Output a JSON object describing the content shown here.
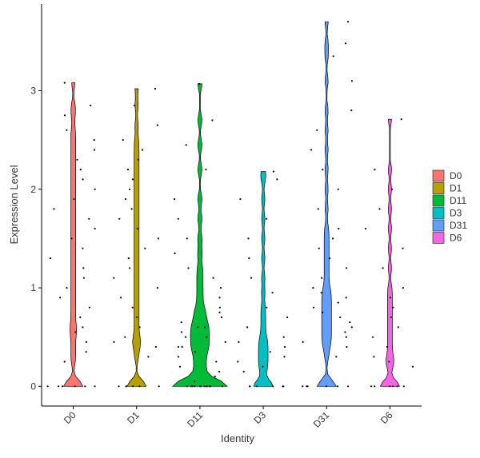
{
  "chart_data": {
    "type": "violin",
    "x_label": "Identity",
    "y_label": "Expression Level",
    "categories": [
      "D0",
      "D1",
      "D11",
      "D3",
      "D31",
      "D6"
    ],
    "ylim": [
      -0.2,
      3.88
    ],
    "yticks": [
      0,
      1,
      2,
      3
    ],
    "series": [
      {
        "name": "D0",
        "color": "#F8766D",
        "values": [
          0,
          0,
          0,
          0,
          0,
          0,
          0.25,
          0.35,
          0.45,
          0.55,
          0.6,
          0.7,
          0.8,
          0.9,
          1.0,
          1.1,
          1.2,
          1.3,
          1.4,
          1.5,
          1.6,
          1.7,
          1.8,
          1.9,
          2.0,
          2.1,
          2.2,
          2.3,
          2.4,
          2.5,
          2.6,
          2.75,
          2.85,
          3.08
        ]
      },
      {
        "name": "D1",
        "color": "#B79F00",
        "values": [
          0,
          0,
          0,
          0,
          0,
          0,
          0.3,
          0.4,
          0.45,
          0.5,
          0.6,
          0.7,
          0.8,
          0.9,
          1.0,
          1.1,
          1.2,
          1.3,
          1.4,
          1.5,
          1.6,
          1.7,
          1.8,
          1.9,
          2.0,
          2.1,
          2.2,
          2.3,
          2.4,
          2.5,
          2.65,
          2.85,
          3.02
        ]
      },
      {
        "name": "D11",
        "color": "#00BA38",
        "values": [
          0,
          0,
          0,
          0,
          0,
          0,
          0,
          0,
          0,
          0,
          0,
          0,
          0.05,
          0.1,
          0.15,
          0.2,
          0.25,
          0.3,
          0.35,
          0.4,
          0.4,
          0.45,
          0.5,
          0.5,
          0.55,
          0.6,
          0.6,
          0.65,
          0.7,
          0.75,
          0.8,
          0.9,
          1.0,
          1.1,
          1.2,
          1.35,
          1.5,
          1.7,
          1.9,
          2.2,
          2.45,
          2.7,
          3.07
        ]
      },
      {
        "name": "D3",
        "color": "#00BFC4",
        "values": [
          0,
          0,
          0,
          0,
          0,
          0,
          0.15,
          0.2,
          0.25,
          0.3,
          0.35,
          0.4,
          0.45,
          0.5,
          0.6,
          0.7,
          0.8,
          0.95,
          1.1,
          1.3,
          1.5,
          1.7,
          1.9,
          2.1,
          2.18
        ]
      },
      {
        "name": "D31",
        "color": "#619CFF",
        "values": [
          0,
          0,
          0,
          0,
          0,
          0,
          0.3,
          0.4,
          0.45,
          0.5,
          0.55,
          0.6,
          0.65,
          0.7,
          0.75,
          0.8,
          0.85,
          0.9,
          0.95,
          1.0,
          1.1,
          1.2,
          1.3,
          1.4,
          1.5,
          1.6,
          1.8,
          2.0,
          2.2,
          2.4,
          2.6,
          2.8,
          3.1,
          3.35,
          3.48,
          3.7
        ]
      },
      {
        "name": "D6",
        "color": "#F564E3",
        "values": [
          0,
          0,
          0,
          0,
          0,
          0,
          0.2,
          0.25,
          0.3,
          0.4,
          0.5,
          0.6,
          0.7,
          0.8,
          0.9,
          1.0,
          1.2,
          1.4,
          1.6,
          1.8,
          2.0,
          2.2,
          2.71
        ]
      }
    ]
  }
}
